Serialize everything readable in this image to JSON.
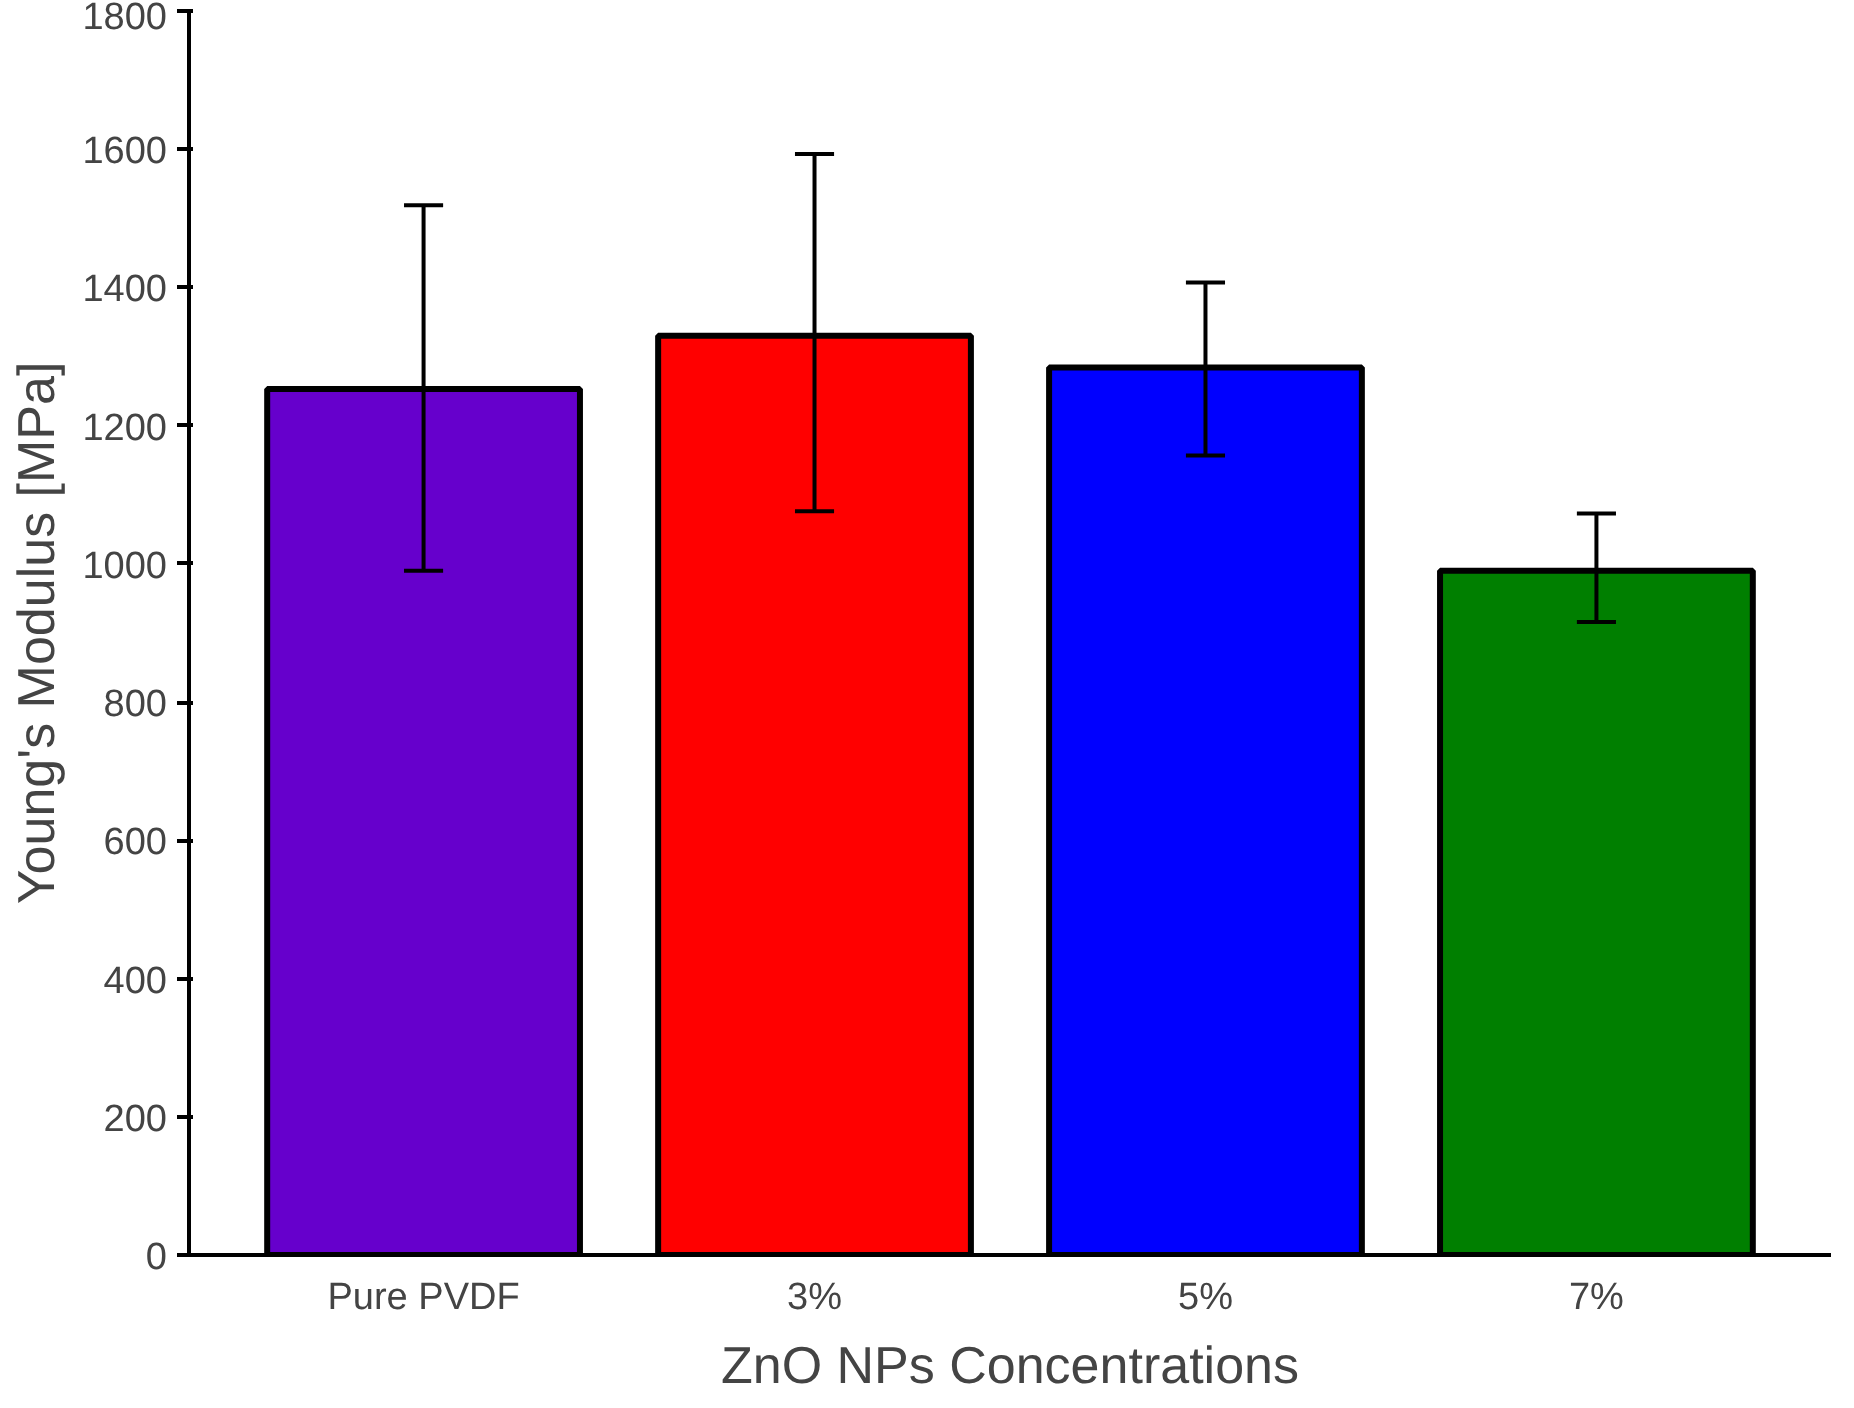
{
  "chart_data": {
    "type": "bar",
    "xlabel": "ZnO NPs Concentrations",
    "ylabel": "Young's Modulus [MPa]",
    "categories": [
      "Pure PVDF",
      "3%",
      "5%",
      "7%"
    ],
    "values": [
      1253,
      1330,
      1284,
      990
    ],
    "colors": [
      "#6600cc",
      "#ff0000",
      "#0000ff",
      "#007f00"
    ],
    "errors": [
      [
        990,
        1519
      ],
      [
        1076,
        1593
      ],
      [
        1157,
        1407
      ],
      [
        916,
        1073
      ]
    ],
    "ylim": [
      0,
      1800
    ],
    "yticks": [
      0,
      200,
      400,
      600,
      800,
      1000,
      1200,
      1400,
      1600,
      1800
    ],
    "grid": false
  }
}
